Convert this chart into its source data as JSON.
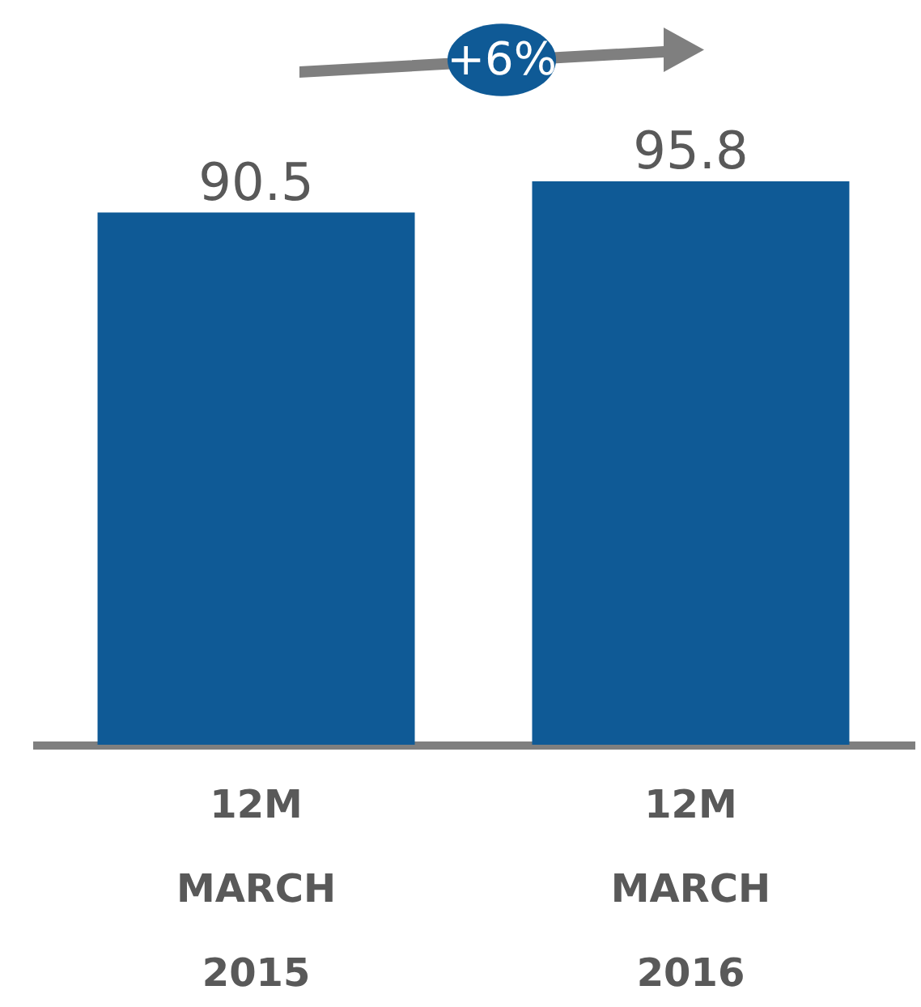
{
  "chart_data": {
    "type": "bar",
    "categories": [
      "12M MARCH 2015",
      "12M MARCH 2016"
    ],
    "values": [
      90.5,
      95.8
    ],
    "color": "#0f5a96",
    "data_labels": true,
    "annotations": [
      "+6%"
    ]
  }
}
